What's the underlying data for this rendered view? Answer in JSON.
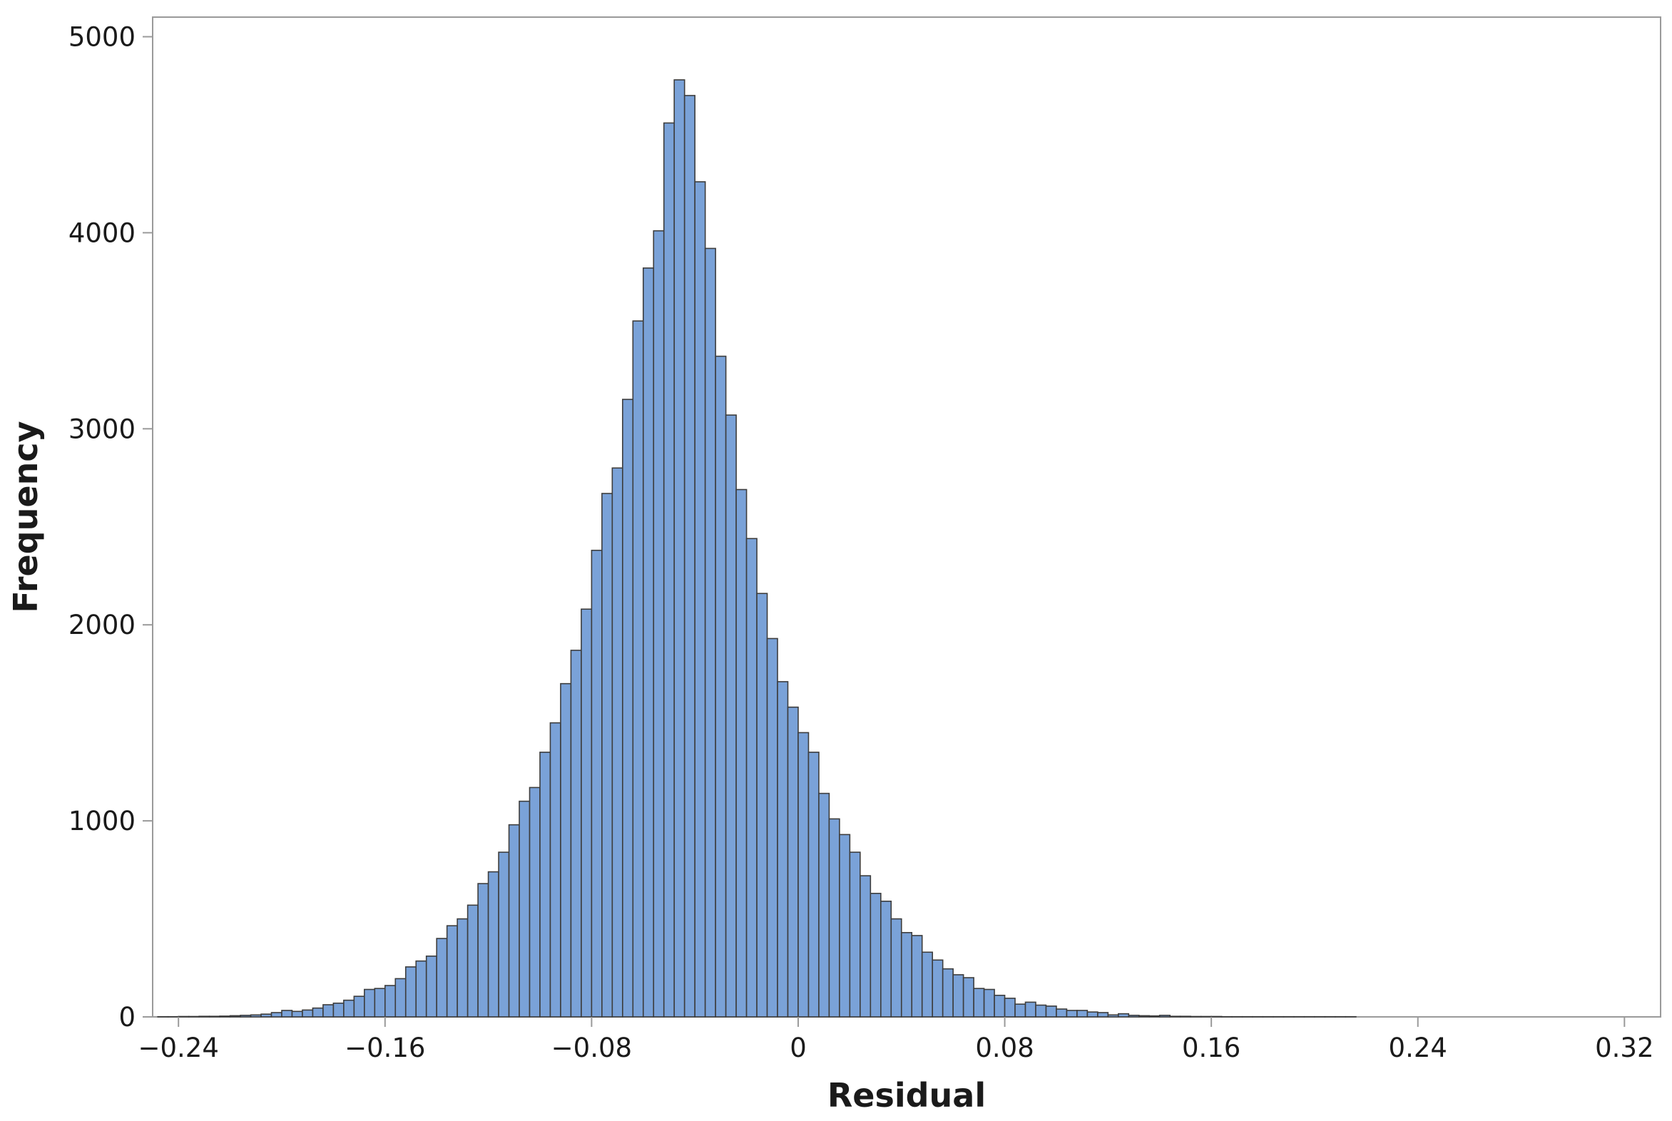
{
  "chart_data": {
    "type": "bar",
    "subtype": "histogram",
    "title": "",
    "xlabel": "Residual",
    "ylabel": "Frequency",
    "bin_width": 0.004,
    "x_start": -0.248,
    "xlim": [
      -0.25,
      0.334
    ],
    "ylim": [
      0,
      5100
    ],
    "x_ticks": [
      -0.24,
      -0.16,
      -0.08,
      0,
      0.08,
      0.16,
      0.24,
      0.32
    ],
    "x_tick_labels": [
      "−0.24",
      "−0.16",
      "−0.08",
      "0",
      "0.08",
      "0.16",
      "0.24",
      "0.32"
    ],
    "y_ticks": [
      0,
      1000,
      2000,
      3000,
      4000,
      5000
    ],
    "y_tick_labels": [
      "0",
      "1000",
      "2000",
      "3000",
      "4000",
      "5000"
    ],
    "grid": false,
    "legend": "none",
    "colors": {
      "bar_fill": "#7aa2d8",
      "bar_stroke": "#3d3d3d",
      "frame": "#9a9a9a"
    },
    "values": [
      1,
      1,
      2,
      2,
      3,
      3,
      4,
      6,
      8,
      10,
      14,
      22,
      33,
      28,
      35,
      45,
      62,
      70,
      85,
      105,
      140,
      145,
      160,
      195,
      255,
      285,
      310,
      400,
      465,
      500,
      570,
      680,
      740,
      840,
      980,
      1100,
      1170,
      1350,
      1500,
      1700,
      1870,
      2080,
      2380,
      2670,
      2800,
      3150,
      3550,
      3820,
      4010,
      4560,
      4780,
      4700,
      4260,
      3920,
      3370,
      3070,
      2690,
      2440,
      2160,
      1930,
      1710,
      1580,
      1450,
      1350,
      1140,
      1010,
      930,
      840,
      720,
      630,
      590,
      500,
      430,
      415,
      330,
      290,
      245,
      215,
      200,
      145,
      140,
      110,
      95,
      65,
      75,
      60,
      55,
      40,
      33,
      33,
      25,
      22,
      10,
      16,
      8,
      6,
      5,
      8,
      3,
      3,
      2,
      2,
      2,
      1,
      1,
      1,
      1,
      1,
      1,
      1,
      1,
      1,
      1,
      1,
      1,
      1
    ]
  }
}
